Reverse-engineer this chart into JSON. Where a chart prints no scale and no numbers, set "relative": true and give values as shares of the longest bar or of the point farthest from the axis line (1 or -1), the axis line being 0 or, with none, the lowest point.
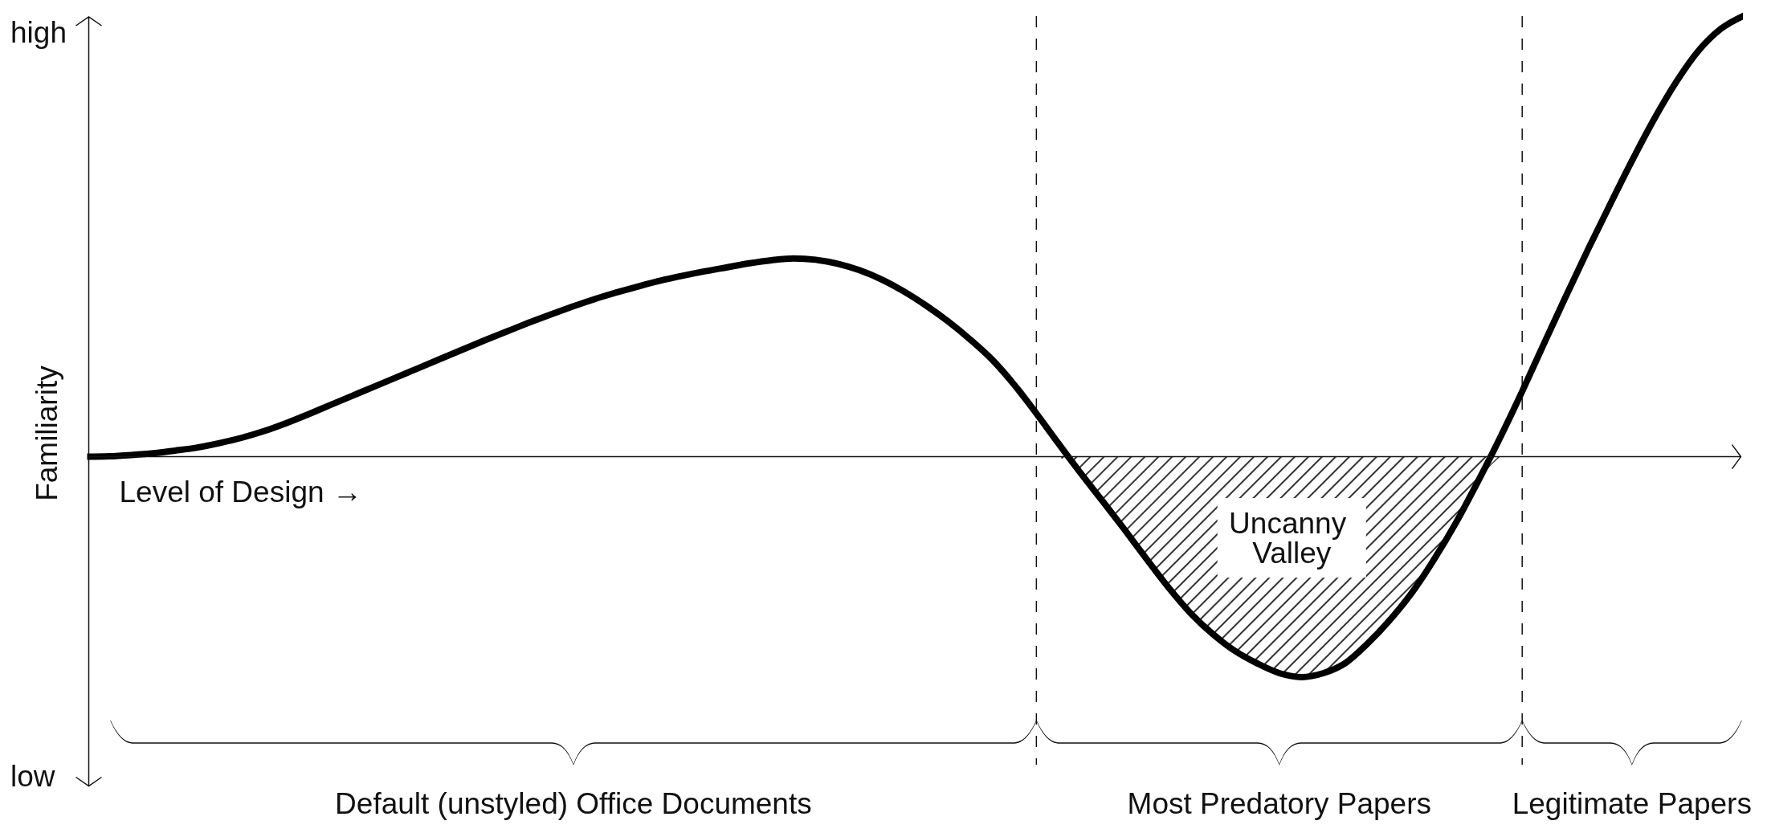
{
  "chart_data": {
    "type": "line",
    "relative": true,
    "xlabel": "Level of Design →",
    "ylabel": "Familiarity",
    "categories": [
      null,
      null,
      null,
      null,
      null,
      null,
      null,
      null,
      null,
      null,
      null,
      null,
      null,
      null,
      null,
      null,
      null,
      null,
      null,
      null,
      null,
      null,
      null,
      null,
      null,
      null,
      null,
      null,
      null,
      null,
      null,
      null,
      null,
      null,
      null,
      null,
      null,
      null,
      null,
      null,
      null,
      null,
      null,
      null,
      null,
      null,
      null,
      null,
      null,
      null,
      null,
      null,
      null,
      null,
      null,
      null,
      null,
      null,
      null,
      null,
      null,
      null,
      null,
      null,
      null,
      null,
      null,
      null,
      null,
      null,
      null,
      null,
      null,
      null,
      null,
      null
    ],
    "series": [
      {
        "color": "#000000",
        "values": [
          0,
          0.001,
          0.004,
          0.008,
          0.014,
          0.021,
          0.031,
          0.043,
          0.058,
          0.076,
          0.096,
          0.117,
          0.138,
          0.159,
          0.18,
          0.201,
          0.222,
          0.243,
          0.264,
          0.284,
          0.304,
          0.323,
          0.341,
          0.358,
          0.373,
          0.387,
          0.4,
          0.411,
          0.421,
          0.43,
          0.439,
          0.446,
          0.45,
          0.447,
          0.438,
          0.423,
          0.402,
          0.375,
          0.343,
          0.307,
          0.266,
          0.22,
          0.163,
          0.098,
          0.03,
          -0.037,
          -0.101,
          -0.166,
          -0.233,
          -0.298,
          -0.356,
          -0.403,
          -0.441,
          -0.469,
          -0.491,
          -0.5,
          -0.491,
          -0.468,
          -0.424,
          -0.371,
          -0.309,
          -0.234,
          -0.15,
          -0.056,
          0.043,
          0.148,
          0.258,
          0.366,
          0.472,
          0.574,
          0.674,
          0.768,
          0.852,
          0.922,
          0.971,
          1.0
        ]
      },
      {
        "type": "area",
        "name": "Uncanny Valley",
        "color": "#000000",
        "values": [
          null,
          null,
          null,
          null,
          null,
          null,
          null,
          null,
          null,
          null,
          null,
          null,
          null,
          null,
          null,
          null,
          null,
          null,
          null,
          null,
          null,
          null,
          null,
          null,
          null,
          null,
          null,
          null,
          null,
          null,
          null,
          null,
          null,
          null,
          null,
          null,
          null,
          null,
          null,
          null,
          null,
          null,
          null,
          null,
          0,
          -0.037,
          -0.101,
          -0.166,
          -0.233,
          -0.298,
          -0.356,
          -0.403,
          -0.441,
          -0.469,
          -0.491,
          -0.5,
          -0.491,
          -0.468,
          -0.424,
          -0.371,
          -0.309,
          -0.234,
          -0.15,
          -0.056,
          0,
          null,
          null,
          null,
          null,
          null,
          null,
          null,
          null,
          null,
          null,
          null
        ]
      }
    ],
    "annotations": [
      "high",
      "low",
      "Default (unstyled) Office Documents",
      "Most Predatory Papers",
      "Legitimate Papers"
    ]
  }
}
